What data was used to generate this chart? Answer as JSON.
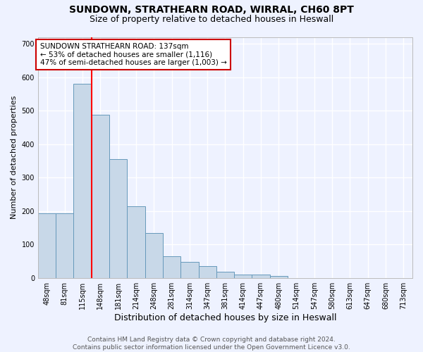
{
  "title1": "SUNDOWN, STRATHEARN ROAD, WIRRAL, CH60 8PT",
  "title2": "Size of property relative to detached houses in Heswall",
  "xlabel": "Distribution of detached houses by size in Heswall",
  "ylabel": "Number of detached properties",
  "categories": [
    "48sqm",
    "81sqm",
    "115sqm",
    "148sqm",
    "181sqm",
    "214sqm",
    "248sqm",
    "281sqm",
    "314sqm",
    "347sqm",
    "381sqm",
    "414sqm",
    "447sqm",
    "480sqm",
    "514sqm",
    "547sqm",
    "580sqm",
    "613sqm",
    "647sqm",
    "680sqm",
    "713sqm"
  ],
  "values": [
    193,
    193,
    580,
    487,
    355,
    215,
    133,
    65,
    48,
    35,
    18,
    10,
    10,
    6,
    0,
    0,
    0,
    0,
    0,
    0,
    0
  ],
  "bar_color": "#c8d8e8",
  "bar_edge_color": "#6699bb",
  "vline_color": "red",
  "annotation_text": "SUNDOWN STRATHEARN ROAD: 137sqm\n← 53% of detached houses are smaller (1,116)\n47% of semi-detached houses are larger (1,003) →",
  "annotation_box_color": "white",
  "annotation_box_edge": "#cc0000",
  "ylim": [
    0,
    720
  ],
  "yticks": [
    0,
    100,
    200,
    300,
    400,
    500,
    600,
    700
  ],
  "footnote": "Contains HM Land Registry data © Crown copyright and database right 2024.\nContains public sector information licensed under the Open Government Licence v3.0.",
  "bg_color": "#eef2ff",
  "grid_color": "#ffffff",
  "title1_fontsize": 10,
  "title2_fontsize": 9,
  "xlabel_fontsize": 9,
  "ylabel_fontsize": 8,
  "tick_fontsize": 7,
  "annot_fontsize": 7.5,
  "footnote_fontsize": 6.5
}
